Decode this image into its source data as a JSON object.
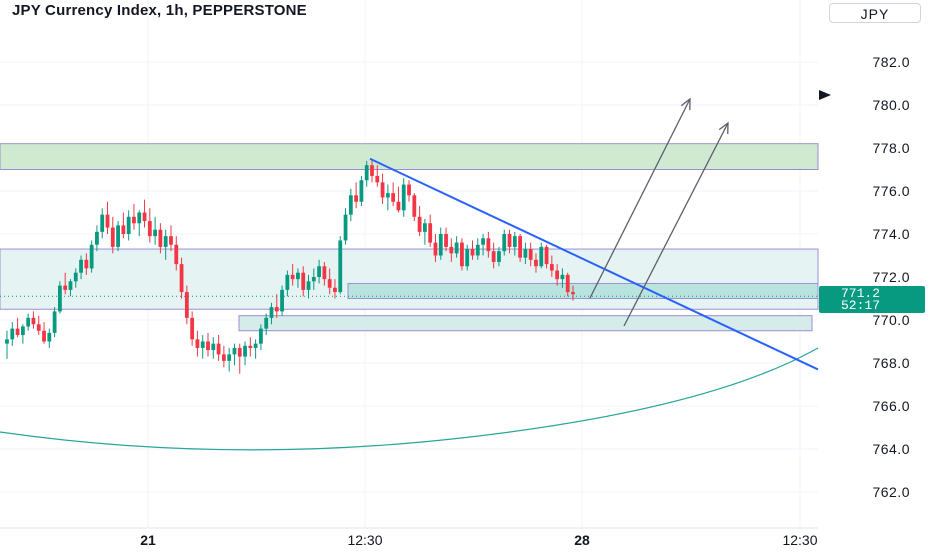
{
  "header": {
    "title": "JPY Currency Index, 1h, PEPPERSTONE",
    "currency": "JPY"
  },
  "chart_data": {
    "type": "candlestick",
    "title": "JPY Currency Index, 1h, PEPPERSTONE",
    "ylim": [
      761.3,
      785.0
    ],
    "y_ticks": [
      "782.0",
      "780.0",
      "778.0",
      "776.0",
      "774.0",
      "772.0",
      "770.0",
      "768.0",
      "766.0",
      "764.0",
      "762.0"
    ],
    "x_ticks": [
      "21",
      "12:30",
      "28",
      "12:30"
    ],
    "grid": true,
    "current_price": {
      "price": "771.2",
      "countdown": "52:17"
    },
    "zones": [
      {
        "name": "supply-zone",
        "ymin": 777.0,
        "ymax": 778.2,
        "color": "#c8e6c9"
      },
      {
        "name": "consolidation-zone",
        "ymin": 770.5,
        "ymax": 773.3,
        "color": "#e0f2f1"
      },
      {
        "name": "support-zone-upper",
        "ymin": 771.0,
        "ymax": 771.7,
        "color": "#b2dfdb"
      },
      {
        "name": "support-zone-lower",
        "ymin": 769.5,
        "ymax": 770.2,
        "color": "#cfe9e7"
      }
    ],
    "candles": [
      [
        768.9,
        769.5,
        768.2,
        769.1
      ],
      [
        769.1,
        769.9,
        768.8,
        769.6
      ],
      [
        769.6,
        770.1,
        769.2,
        769.3
      ],
      [
        769.3,
        769.8,
        768.9,
        769.7
      ],
      [
        769.7,
        770.3,
        769.5,
        770.1
      ],
      [
        770.1,
        770.4,
        769.6,
        769.8
      ],
      [
        769.8,
        770.2,
        769.3,
        769.5
      ],
      [
        769.5,
        769.9,
        768.9,
        769.0
      ],
      [
        769.0,
        769.6,
        768.7,
        769.4
      ],
      [
        769.4,
        770.6,
        769.2,
        770.4
      ],
      [
        770.4,
        771.8,
        770.3,
        771.6
      ],
      [
        771.6,
        772.2,
        771.2,
        771.4
      ],
      [
        771.4,
        771.9,
        771.1,
        771.8
      ],
      [
        771.8,
        772.4,
        771.5,
        772.2
      ],
      [
        772.2,
        773.0,
        771.9,
        772.8
      ],
      [
        772.8,
        773.1,
        772.1,
        772.4
      ],
      [
        772.4,
        773.7,
        772.2,
        773.5
      ],
      [
        773.5,
        774.4,
        773.2,
        774.1
      ],
      [
        774.1,
        775.2,
        773.8,
        774.9
      ],
      [
        774.9,
        775.5,
        774.0,
        774.3
      ],
      [
        774.3,
        774.8,
        773.1,
        773.4
      ],
      [
        773.4,
        774.6,
        773.2,
        774.4
      ],
      [
        774.4,
        775.0,
        773.8,
        774.0
      ],
      [
        774.0,
        775.1,
        773.7,
        774.8
      ],
      [
        774.8,
        775.4,
        774.2,
        774.5
      ],
      [
        774.5,
        775.1,
        773.9,
        775.0
      ],
      [
        775.0,
        775.6,
        774.3,
        774.6
      ],
      [
        774.6,
        775.2,
        773.6,
        773.9
      ],
      [
        773.9,
        774.8,
        773.5,
        774.2
      ],
      [
        774.2,
        774.5,
        773.1,
        773.4
      ],
      [
        773.4,
        774.2,
        772.8,
        773.9
      ],
      [
        773.9,
        774.4,
        773.2,
        773.5
      ],
      [
        773.5,
        773.9,
        772.3,
        772.6
      ],
      [
        772.6,
        772.9,
        771.0,
        771.3
      ],
      [
        771.3,
        771.6,
        769.8,
        770.1
      ],
      [
        770.1,
        770.4,
        768.8,
        769.1
      ],
      [
        769.1,
        769.5,
        768.3,
        768.7
      ],
      [
        768.7,
        769.3,
        768.2,
        769.0
      ],
      [
        769.0,
        769.4,
        768.3,
        768.6
      ],
      [
        768.6,
        769.2,
        768.2,
        768.9
      ],
      [
        768.9,
        769.3,
        768.1,
        768.4
      ],
      [
        768.4,
        768.8,
        767.8,
        768.1
      ],
      [
        768.1,
        768.7,
        767.6,
        768.4
      ],
      [
        768.4,
        768.9,
        767.9,
        768.7
      ],
      [
        768.7,
        768.9,
        767.5,
        768.3
      ],
      [
        768.3,
        769.0,
        767.9,
        768.8
      ],
      [
        768.8,
        769.2,
        768.3,
        768.7
      ],
      [
        768.7,
        769.1,
        768.2,
        768.9
      ],
      [
        768.9,
        769.8,
        768.6,
        769.6
      ],
      [
        769.6,
        770.3,
        769.3,
        770.1
      ],
      [
        770.1,
        770.8,
        769.8,
        770.6
      ],
      [
        770.6,
        771.2,
        770.1,
        770.4
      ],
      [
        770.4,
        771.6,
        770.2,
        771.4
      ],
      [
        771.4,
        772.3,
        771.1,
        772.1
      ],
      [
        772.1,
        772.6,
        771.6,
        771.9
      ],
      [
        771.9,
        772.4,
        771.5,
        772.2
      ],
      [
        772.2,
        772.5,
        771.1,
        771.4
      ],
      [
        771.4,
        772.1,
        771.0,
        771.8
      ],
      [
        771.8,
        772.4,
        771.4,
        772.0
      ],
      [
        772.0,
        772.8,
        771.7,
        772.5
      ],
      [
        772.5,
        772.7,
        771.6,
        771.9
      ],
      [
        771.9,
        772.4,
        771.2,
        771.5
      ],
      [
        771.5,
        771.9,
        771.0,
        771.3
      ],
      [
        771.3,
        773.9,
        771.2,
        773.7
      ],
      [
        773.7,
        775.2,
        773.5,
        774.9
      ],
      [
        774.9,
        776.1,
        774.6,
        775.8
      ],
      [
        775.8,
        776.4,
        775.2,
        775.5
      ],
      [
        775.5,
        776.7,
        775.3,
        776.5
      ],
      [
        776.5,
        777.4,
        776.2,
        777.2
      ],
      [
        777.2,
        777.5,
        776.4,
        776.7
      ],
      [
        776.7,
        777.2,
        776.2,
        776.4
      ],
      [
        776.4,
        776.8,
        775.4,
        775.7
      ],
      [
        775.7,
        776.3,
        775.1,
        775.9
      ],
      [
        775.9,
        776.4,
        775.3,
        775.5
      ],
      [
        775.5,
        776.2,
        775.0,
        775.1
      ],
      [
        775.1,
        776.6,
        774.8,
        776.3
      ],
      [
        776.3,
        776.5,
        775.5,
        775.8
      ],
      [
        775.8,
        775.9,
        774.6,
        774.8
      ],
      [
        774.8,
        775.3,
        773.9,
        774.1
      ],
      [
        774.1,
        774.7,
        773.5,
        774.5
      ],
      [
        774.5,
        774.9,
        773.4,
        773.6
      ],
      [
        773.6,
        774.0,
        772.7,
        773.0
      ],
      [
        773.0,
        774.3,
        772.8,
        774.0
      ],
      [
        774.0,
        774.3,
        773.2,
        773.4
      ],
      [
        773.4,
        773.8,
        772.7,
        773.1
      ],
      [
        773.1,
        773.9,
        772.9,
        773.6
      ],
      [
        773.6,
        773.8,
        772.3,
        772.5
      ],
      [
        772.5,
        773.5,
        772.3,
        773.3
      ],
      [
        773.3,
        773.7,
        772.8,
        773.0
      ],
      [
        773.0,
        773.8,
        772.8,
        773.5
      ],
      [
        773.5,
        774.0,
        773.0,
        773.8
      ],
      [
        773.8,
        774.1,
        772.9,
        773.2
      ],
      [
        773.2,
        773.6,
        772.4,
        772.7
      ],
      [
        772.7,
        773.4,
        772.5,
        773.2
      ],
      [
        773.2,
        774.2,
        773.0,
        774.0
      ],
      [
        774.0,
        774.2,
        773.1,
        773.4
      ],
      [
        773.4,
        774.1,
        773.0,
        773.9
      ],
      [
        773.9,
        774.0,
        772.7,
        772.9
      ],
      [
        772.9,
        773.6,
        772.6,
        773.3
      ],
      [
        773.3,
        773.6,
        772.5,
        772.8
      ],
      [
        772.8,
        773.1,
        772.2,
        772.5
      ],
      [
        772.5,
        773.6,
        772.4,
        773.4
      ],
      [
        773.4,
        773.5,
        772.4,
        772.6
      ],
      [
        772.6,
        773.0,
        772.0,
        772.3
      ],
      [
        772.3,
        772.6,
        771.6,
        771.9
      ],
      [
        771.9,
        772.4,
        771.5,
        772.1
      ],
      [
        772.1,
        772.2,
        771.1,
        771.3
      ],
      [
        771.3,
        771.6,
        770.9,
        771.2
      ]
    ]
  }
}
